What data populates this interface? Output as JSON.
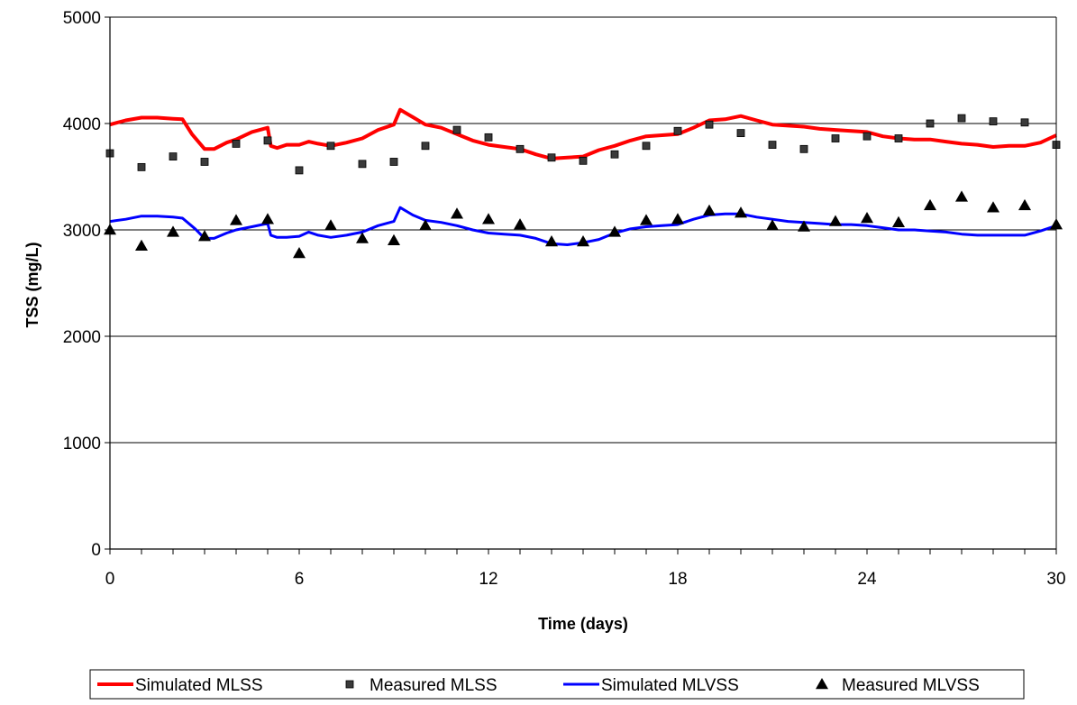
{
  "chart_data": {
    "type": "line",
    "title": "",
    "xlabel": "Time (days)",
    "ylabel": "TSS (mg/L)",
    "xlim": [
      0,
      30
    ],
    "ylim": [
      0,
      5000
    ],
    "x_ticks": [
      0,
      6,
      12,
      18,
      24,
      30
    ],
    "y_ticks": [
      0,
      1000,
      2000,
      3000,
      4000,
      5000
    ],
    "grid": "horizontal",
    "legend": "bottom",
    "series": [
      {
        "name": "Simulated MLSS",
        "kind": "line",
        "color": "#ff0000",
        "points": [
          [
            0,
            3990
          ],
          [
            0.5,
            4030
          ],
          [
            1,
            4055
          ],
          [
            1.5,
            4055
          ],
          [
            2,
            4045
          ],
          [
            2.3,
            4040
          ],
          [
            2.6,
            3900
          ],
          [
            3,
            3760
          ],
          [
            3.3,
            3760
          ],
          [
            3.7,
            3820
          ],
          [
            4,
            3850
          ],
          [
            4.5,
            3920
          ],
          [
            5,
            3960
          ],
          [
            5.1,
            3790
          ],
          [
            5.3,
            3770
          ],
          [
            5.6,
            3800
          ],
          [
            6,
            3800
          ],
          [
            6.3,
            3830
          ],
          [
            6.6,
            3810
          ],
          [
            7,
            3790
          ],
          [
            7.5,
            3820
          ],
          [
            8,
            3860
          ],
          [
            8.5,
            3940
          ],
          [
            9,
            3990
          ],
          [
            9.2,
            4130
          ],
          [
            9.6,
            4060
          ],
          [
            10,
            3990
          ],
          [
            10.5,
            3960
          ],
          [
            11,
            3900
          ],
          [
            11.5,
            3840
          ],
          [
            12,
            3800
          ],
          [
            12.5,
            3780
          ],
          [
            13,
            3760
          ],
          [
            13.5,
            3710
          ],
          [
            14,
            3670
          ],
          [
            14.5,
            3680
          ],
          [
            15,
            3690
          ],
          [
            15.5,
            3750
          ],
          [
            16,
            3790
          ],
          [
            16.5,
            3840
          ],
          [
            17,
            3880
          ],
          [
            17.5,
            3890
          ],
          [
            18,
            3900
          ],
          [
            18.5,
            3960
          ],
          [
            19,
            4030
          ],
          [
            19.5,
            4040
          ],
          [
            20,
            4070
          ],
          [
            20.5,
            4030
          ],
          [
            21,
            3990
          ],
          [
            21.5,
            3980
          ],
          [
            22,
            3970
          ],
          [
            22.5,
            3950
          ],
          [
            23,
            3940
          ],
          [
            23.5,
            3930
          ],
          [
            24,
            3920
          ],
          [
            24.5,
            3880
          ],
          [
            25,
            3860
          ],
          [
            25.5,
            3850
          ],
          [
            26,
            3850
          ],
          [
            26.5,
            3830
          ],
          [
            27,
            3810
          ],
          [
            27.5,
            3800
          ],
          [
            28,
            3780
          ],
          [
            28.5,
            3790
          ],
          [
            29,
            3790
          ],
          [
            29.5,
            3820
          ],
          [
            30,
            3890
          ]
        ]
      },
      {
        "name": "Measured MLSS",
        "kind": "scatter",
        "marker": "square",
        "color": "#3a3a3a",
        "x": [
          0,
          1,
          2,
          3,
          4,
          5,
          6,
          7,
          8,
          9,
          10,
          11,
          12,
          13,
          14,
          15,
          16,
          17,
          18,
          19,
          20,
          21,
          22,
          23,
          24,
          25,
          26,
          27,
          28,
          29,
          30
        ],
        "y": [
          3720,
          3590,
          3690,
          3640,
          3810,
          3840,
          3560,
          3790,
          3620,
          3640,
          3790,
          3940,
          3870,
          3760,
          3680,
          3650,
          3710,
          3790,
          3930,
          3990,
          3910,
          3800,
          3760,
          3860,
          3880,
          3860,
          4000,
          4050,
          4020,
          4010,
          3800
        ]
      },
      {
        "name": "Simulated MLVSS",
        "kind": "line",
        "color": "#0000ff",
        "points": [
          [
            0,
            3080
          ],
          [
            0.5,
            3100
          ],
          [
            1,
            3130
          ],
          [
            1.5,
            3130
          ],
          [
            2,
            3120
          ],
          [
            2.3,
            3110
          ],
          [
            2.7,
            3010
          ],
          [
            3,
            2920
          ],
          [
            3.3,
            2920
          ],
          [
            3.7,
            2970
          ],
          [
            4,
            3000
          ],
          [
            4.5,
            3030
          ],
          [
            5,
            3060
          ],
          [
            5.1,
            2950
          ],
          [
            5.3,
            2930
          ],
          [
            5.6,
            2930
          ],
          [
            6,
            2940
          ],
          [
            6.3,
            2980
          ],
          [
            6.6,
            2950
          ],
          [
            7,
            2930
          ],
          [
            7.5,
            2950
          ],
          [
            8,
            2980
          ],
          [
            8.5,
            3040
          ],
          [
            9,
            3080
          ],
          [
            9.2,
            3210
          ],
          [
            9.6,
            3140
          ],
          [
            10,
            3090
          ],
          [
            10.5,
            3070
          ],
          [
            11,
            3040
          ],
          [
            11.5,
            3000
          ],
          [
            12,
            2970
          ],
          [
            12.5,
            2960
          ],
          [
            13,
            2950
          ],
          [
            13.5,
            2920
          ],
          [
            14,
            2870
          ],
          [
            14.5,
            2860
          ],
          [
            15,
            2880
          ],
          [
            15.5,
            2910
          ],
          [
            16,
            2970
          ],
          [
            16.5,
            3010
          ],
          [
            17,
            3030
          ],
          [
            17.5,
            3040
          ],
          [
            18,
            3050
          ],
          [
            18.5,
            3100
          ],
          [
            19,
            3140
          ],
          [
            19.5,
            3150
          ],
          [
            20,
            3150
          ],
          [
            20.5,
            3120
          ],
          [
            21,
            3100
          ],
          [
            21.5,
            3080
          ],
          [
            22,
            3070
          ],
          [
            22.5,
            3060
          ],
          [
            23,
            3050
          ],
          [
            23.5,
            3050
          ],
          [
            24,
            3040
          ],
          [
            24.5,
            3020
          ],
          [
            25,
            3000
          ],
          [
            25.5,
            3000
          ],
          [
            26,
            2990
          ],
          [
            26.5,
            2980
          ],
          [
            27,
            2960
          ],
          [
            27.5,
            2950
          ],
          [
            28,
            2950
          ],
          [
            28.5,
            2950
          ],
          [
            29,
            2950
          ],
          [
            29.5,
            2990
          ],
          [
            30,
            3040
          ]
        ]
      },
      {
        "name": "Measured MLVSS",
        "kind": "scatter",
        "marker": "triangle",
        "color": "#000000",
        "x": [
          0,
          1,
          2,
          3,
          4,
          5,
          6,
          7,
          8,
          9,
          10,
          11,
          12,
          13,
          14,
          15,
          16,
          17,
          18,
          19,
          20,
          21,
          22,
          23,
          24,
          25,
          26,
          27,
          28,
          29,
          30
        ],
        "y": [
          3000,
          2850,
          2980,
          2940,
          3090,
          3100,
          2780,
          3040,
          2920,
          2900,
          3040,
          3150,
          3100,
          3050,
          2890,
          2890,
          2980,
          3090,
          3100,
          3180,
          3160,
          3040,
          3030,
          3080,
          3110,
          3070,
          3230,
          3310,
          3210,
          3230,
          3050
        ]
      }
    ]
  }
}
